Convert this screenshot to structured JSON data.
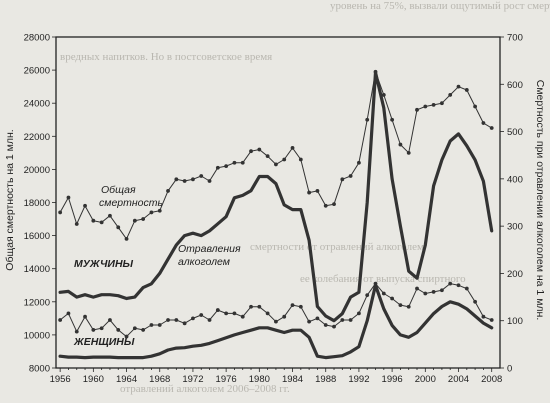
{
  "background_text": [
    "уровень на 75%, вызвали ощутимый рост смертности",
    "вредных напитков. Но в постсоветское время",
    "смертности от отравлений алкоголем",
    "ее колебания от выпуска спиртного",
    "отравлений алкоголем 2006–2008 гг."
  ],
  "chart_data": {
    "type": "line",
    "x": [
      1956,
      1957,
      1958,
      1959,
      1960,
      1961,
      1962,
      1963,
      1964,
      1965,
      1966,
      1967,
      1968,
      1969,
      1970,
      1971,
      1972,
      1973,
      1974,
      1975,
      1976,
      1977,
      1978,
      1979,
      1980,
      1981,
      1982,
      1983,
      1984,
      1985,
      1986,
      1987,
      1988,
      1989,
      1990,
      1991,
      1992,
      1993,
      1994,
      1995,
      1996,
      1997,
      1998,
      1999,
      2000,
      2001,
      2002,
      2003,
      2004,
      2005,
      2006,
      2007,
      2008
    ],
    "xlim": [
      1955.5,
      2009
    ],
    "x_ticks": [
      "1956",
      "1960",
      "1964",
      "1968",
      "1972",
      "1976",
      "1980",
      "1984",
      "1988",
      "1992",
      "1996",
      "2000",
      "2004",
      "2008"
    ],
    "left_axis": {
      "label": "Общая смертность на 1 млн.",
      "ylim": [
        8000,
        28000
      ],
      "ticks": [
        "8000",
        "10000",
        "12000",
        "14000",
        "16000",
        "18000",
        "20000",
        "22000",
        "24000",
        "26000",
        "28000"
      ]
    },
    "right_axis": {
      "label": "Смертность при отравлении алкоголем на 1 млн.",
      "ylim": [
        0,
        700
      ],
      "ticks": [
        "0",
        "100",
        "200",
        "300",
        "400",
        "500",
        "600",
        "700"
      ]
    },
    "series": [
      {
        "name": "Общая смертность",
        "group": "МУЖЧИНЫ",
        "axis": "left",
        "style": "markers",
        "values": [
          17400,
          18300,
          16700,
          17800,
          16900,
          16800,
          17200,
          16500,
          15800,
          16900,
          17000,
          17400,
          17500,
          18700,
          19400,
          19300,
          19400,
          19600,
          19300,
          20100,
          20200,
          20400,
          20400,
          21100,
          21200,
          20800,
          20300,
          20600,
          21300,
          20600,
          18600,
          18700,
          17800,
          17900,
          19400,
          19600,
          20400,
          23000,
          25900,
          24500,
          23000,
          21500,
          21000,
          23600,
          23800,
          23900,
          24000,
          24500,
          25000,
          24800,
          23800,
          22800,
          22500
        ]
      },
      {
        "name": "Отравления алкоголем",
        "group": "МУЖЧИНЫ",
        "axis": "right",
        "style": "thick",
        "values": [
          160,
          162,
          150,
          155,
          150,
          155,
          155,
          153,
          147,
          150,
          170,
          178,
          200,
          230,
          260,
          280,
          285,
          280,
          290,
          305,
          320,
          360,
          365,
          375,
          405,
          405,
          390,
          345,
          335,
          335,
          270,
          130,
          110,
          100,
          115,
          150,
          160,
          350,
          625,
          550,
          400,
          300,
          205,
          190,
          260,
          385,
          440,
          480,
          495,
          470,
          440,
          395,
          290
        ]
      },
      {
        "name": "Общая смертность",
        "group": "ЖЕНЩИНЫ",
        "axis": "left",
        "style": "markers",
        "values": [
          10900,
          11300,
          10200,
          11100,
          10300,
          10400,
          10900,
          10300,
          9900,
          10400,
          10300,
          10600,
          10600,
          10900,
          10900,
          10700,
          11000,
          11200,
          10900,
          11500,
          11300,
          11300,
          11100,
          11700,
          11700,
          11300,
          10800,
          11100,
          11800,
          11700,
          10800,
          11000,
          10600,
          10500,
          10900,
          10900,
          11300,
          12400,
          13100,
          12500,
          12200,
          11800,
          11700,
          12800,
          12500,
          12600,
          12700,
          13100,
          13000,
          12800,
          12000,
          11100,
          10900
        ]
      },
      {
        "name": "Отравления алкоголем",
        "group": "ЖЕНЩИНЫ",
        "axis": "right",
        "style": "thick",
        "values": [
          25,
          23,
          23,
          22,
          23,
          23,
          23,
          22,
          22,
          22,
          22,
          25,
          30,
          38,
          42,
          43,
          46,
          48,
          52,
          58,
          64,
          70,
          75,
          80,
          85,
          85,
          80,
          75,
          80,
          80,
          65,
          25,
          22,
          24,
          26,
          34,
          45,
          100,
          175,
          125,
          90,
          70,
          65,
          75,
          95,
          115,
          130,
          140,
          135,
          125,
          110,
          95,
          85
        ]
      }
    ],
    "annotations": [
      {
        "text": "Общая",
        "style": "italic"
      },
      {
        "text": "смертность",
        "style": "italic"
      },
      {
        "text": "МУЖЧИНЫ",
        "style": "bold-italic"
      },
      {
        "text": "Отравления",
        "style": "italic"
      },
      {
        "text": "алкоголем",
        "style": "italic"
      },
      {
        "text": "ЖЕНЩИНЫ",
        "style": "bold-italic"
      }
    ]
  },
  "colors": {
    "line": "#333333",
    "background": "#e9e8e3",
    "axis": "#222222"
  }
}
